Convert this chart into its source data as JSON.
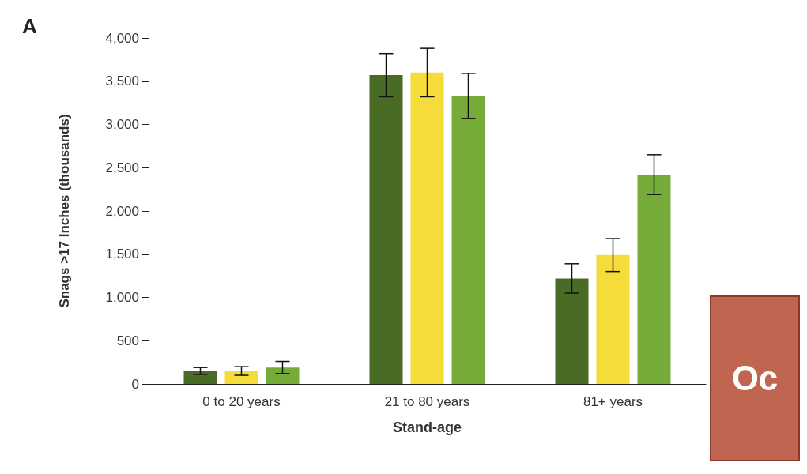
{
  "chart_data": {
    "type": "bar",
    "xlabel": "Stand-age",
    "ylabel": "Snags >17 Inches (thousands)",
    "categories": [
      "0 to 20 years",
      "21 to 80 years",
      "81+ years"
    ],
    "series": [
      {
        "color": "#4a6b25",
        "values": [
          150,
          3570,
          1220
        ],
        "errors": [
          40,
          250,
          170
        ]
      },
      {
        "color": "#f5dc3a",
        "values": [
          150,
          3600,
          1490
        ],
        "errors": [
          50,
          280,
          190
        ]
      },
      {
        "color": "#76ab3a",
        "values": [
          190,
          3330,
          2420
        ],
        "errors": [
          70,
          260,
          230
        ]
      }
    ],
    "ylim": [
      0,
      4000
    ],
    "yticks": [
      0,
      500,
      {
        "value": 1000,
        "label": "1,000"
      },
      {
        "value": 1500,
        "label": "1,500"
      },
      {
        "value": 2000,
        "label": "2,000"
      },
      {
        "value": 2500,
        "label": "2,500"
      },
      {
        "value": 3000,
        "label": "3,000"
      },
      {
        "value": 3500,
        "label": "3,500"
      },
      {
        "value": 4000,
        "label": "4,000"
      }
    ],
    "grid": false,
    "annotations": [
      "A",
      "Oc"
    ]
  }
}
